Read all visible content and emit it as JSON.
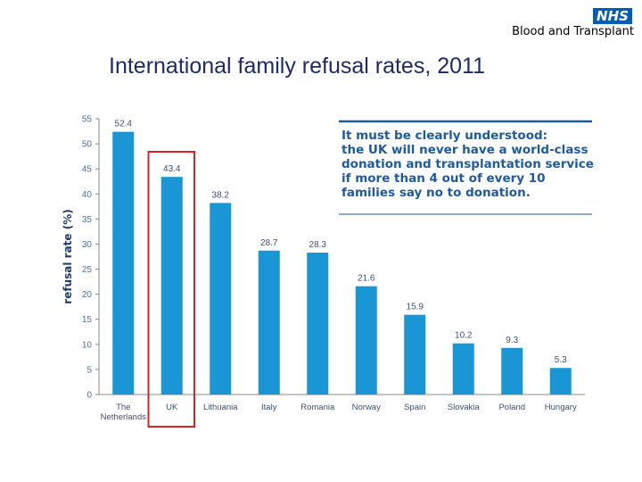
{
  "header": {
    "logo_text": "NHS",
    "org_name": "Blood and Transplant",
    "brand_color": "#005eb8"
  },
  "slide": {
    "title": "International family refusal rates, 2011"
  },
  "callout": {
    "lines": [
      "It must be clearly understood:",
      "the UK will never have a world-class",
      "donation and transplantation service",
      "if more than 4 out of every 10",
      "families say no to donation."
    ],
    "color": "#1f5a9e"
  },
  "chart_data": {
    "type": "bar",
    "title": "",
    "xlabel": "",
    "ylabel": "refusal rate (%)",
    "ylim": [
      0,
      55
    ],
    "yticks": [
      0,
      5,
      10,
      15,
      20,
      25,
      30,
      35,
      40,
      45,
      50,
      55
    ],
    "categories": [
      "The Netherlands",
      "UK",
      "Lithuania",
      "Italy",
      "Romania",
      "Norway",
      "Spain",
      "Slovakia",
      "Poland",
      "Hungary"
    ],
    "category_lines": [
      [
        "The",
        "Netherlands"
      ],
      [
        "UK"
      ],
      [
        "Lithuania"
      ],
      [
        "Italy"
      ],
      [
        "Romania"
      ],
      [
        "Norway"
      ],
      [
        "Spain"
      ],
      [
        "Slovakia"
      ],
      [
        "Poland"
      ],
      [
        "Hungary"
      ]
    ],
    "values": [
      52.4,
      43.4,
      38.2,
      28.7,
      28.3,
      21.6,
      15.9,
      10.2,
      9.3,
      5.3
    ],
    "value_labels": [
      "52.4",
      "43.4",
      "38.2",
      "28.7",
      "28.3",
      "21.6",
      "15.9",
      "10.2",
      "9.3",
      "5.3"
    ],
    "bar_color": "#1a96d4",
    "highlight_category": "UK",
    "highlight_color": "#e02020",
    "grid": false
  }
}
